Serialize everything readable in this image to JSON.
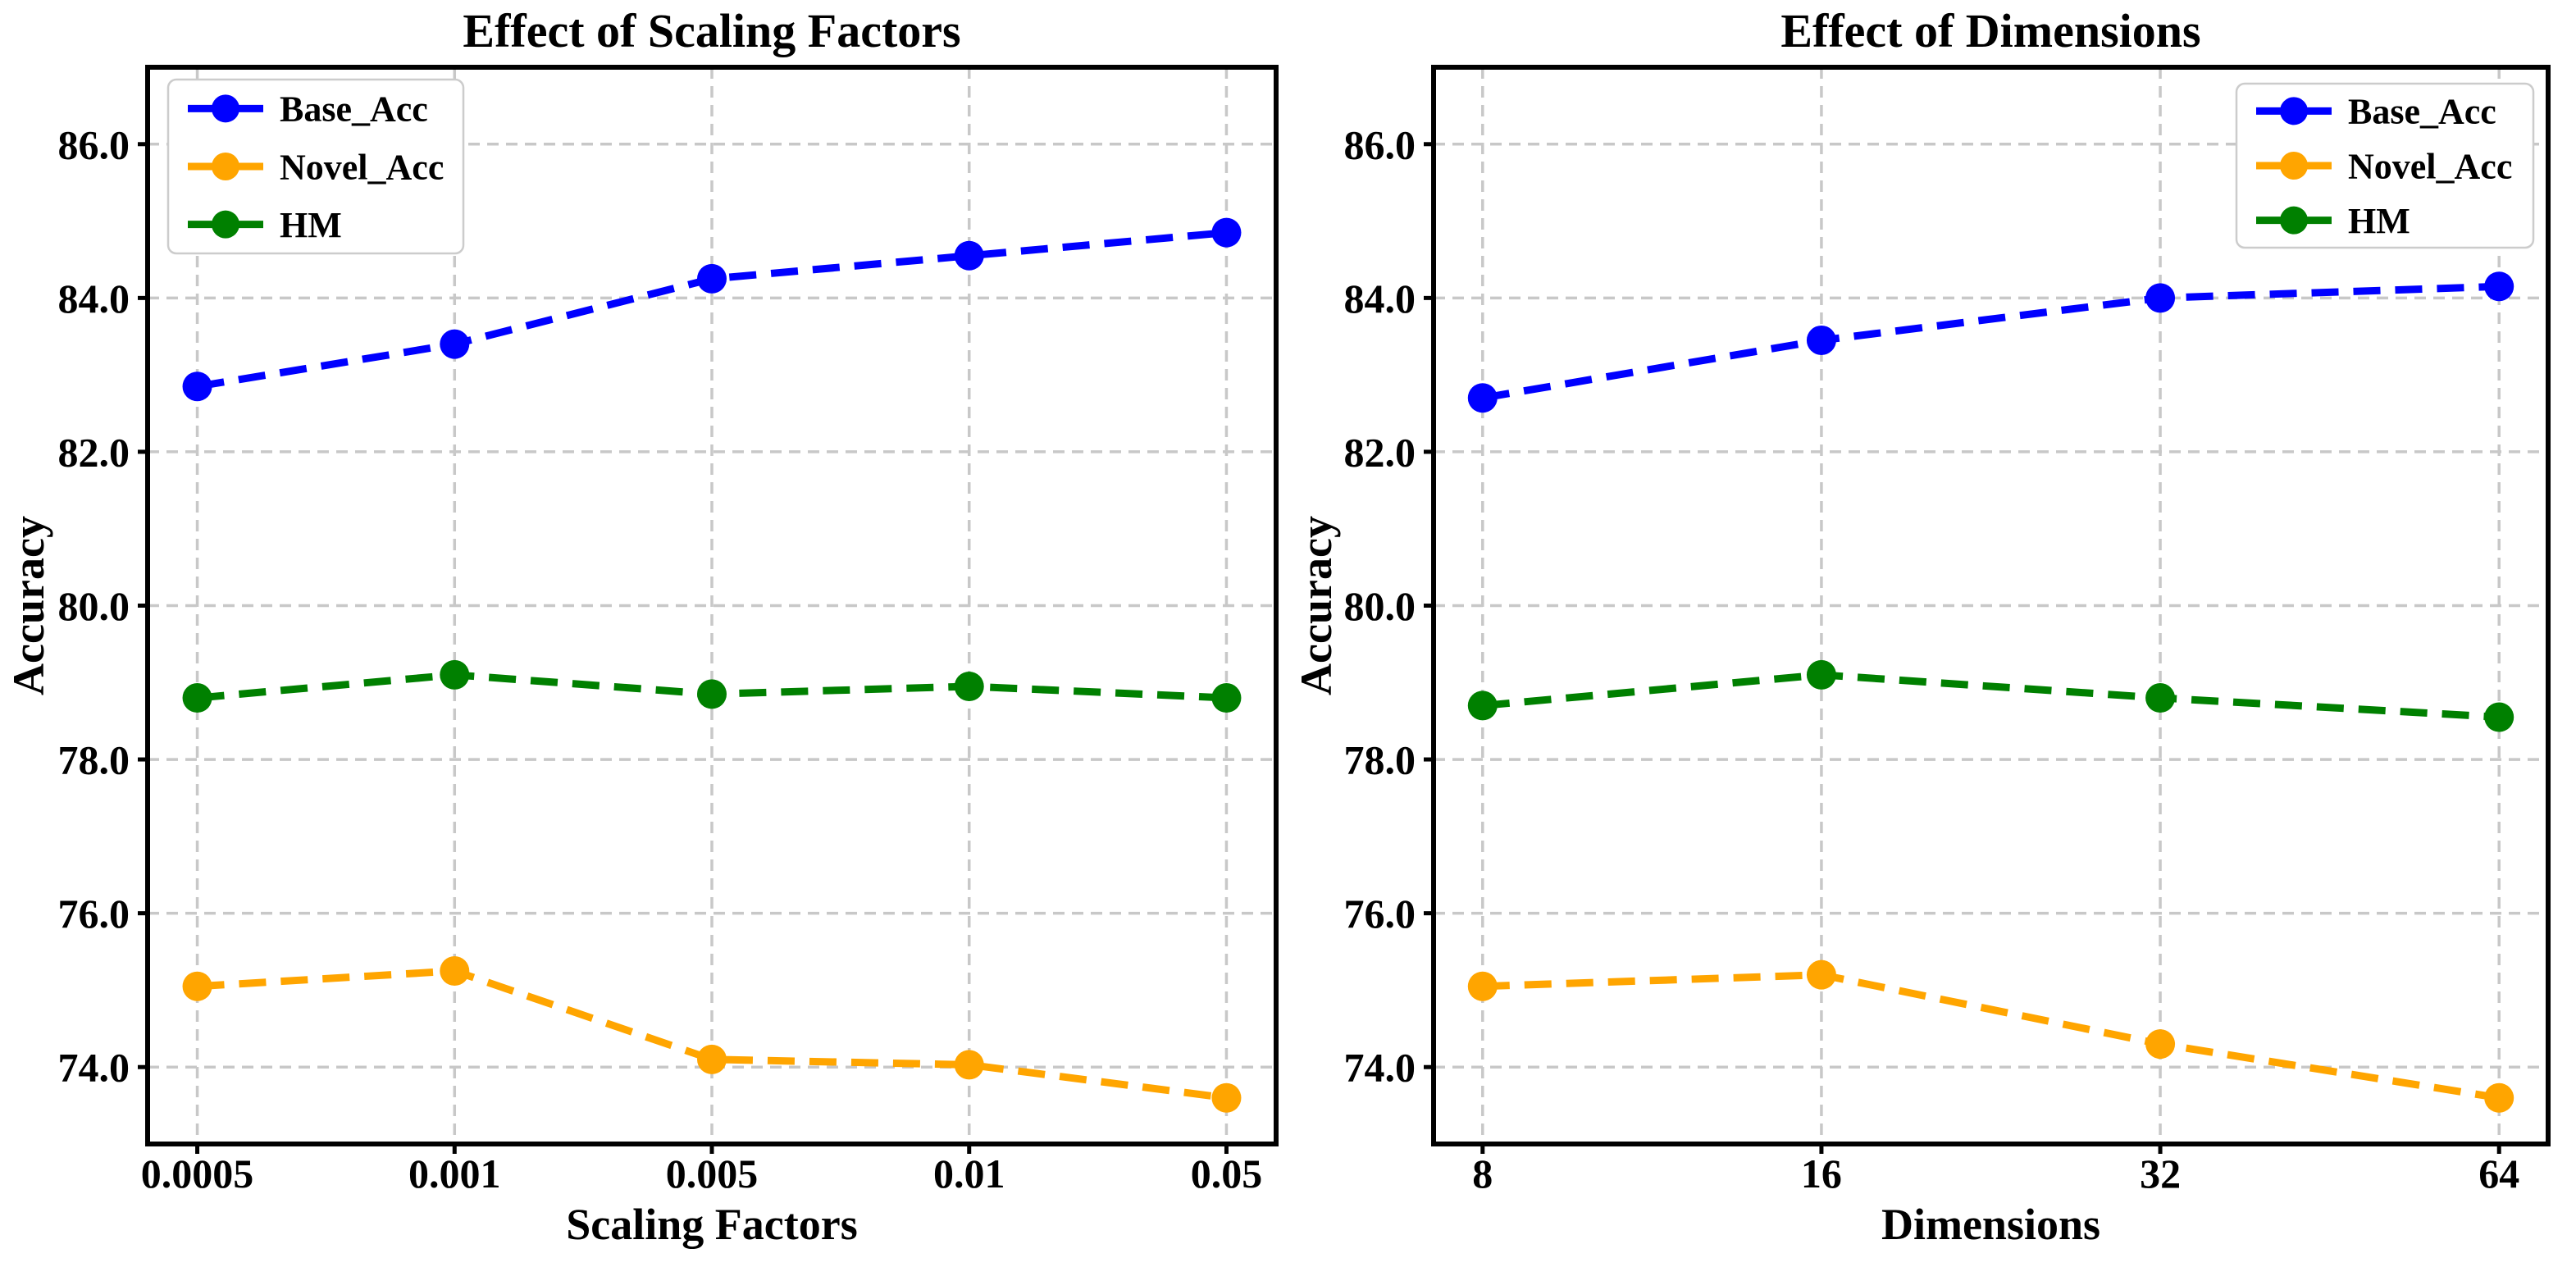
{
  "figure": {
    "background": "#ffffff",
    "text_color": "#000000",
    "grid_color": "#c8c8c8",
    "axis_color": "#000000",
    "legend_border_color": "#cccccc"
  },
  "chart_data": [
    {
      "type": "line",
      "title": "Effect of Scaling Factors",
      "xlabel": "Scaling Factors",
      "ylabel": "Accuracy",
      "categories": [
        "0.0005",
        "0.001",
        "0.005",
        "0.01",
        "0.05"
      ],
      "series": [
        {
          "name": "Base_Acc",
          "color": "#0000ff",
          "values": [
            82.85,
            83.4,
            84.25,
            84.55,
            84.85
          ]
        },
        {
          "name": "Novel_Acc",
          "color": "#ffa500",
          "values": [
            75.05,
            75.25,
            74.1,
            74.03,
            73.6
          ]
        },
        {
          "name": "HM",
          "color": "#008000",
          "values": [
            78.8,
            79.1,
            78.85,
            78.95,
            78.8
          ]
        }
      ],
      "ylim": [
        73.0,
        87.0
      ],
      "yticks": [
        74,
        76,
        78,
        80,
        82,
        84,
        86
      ],
      "ytick_labels": [
        "74.0",
        "76.0",
        "78.0",
        "80.0",
        "82.0",
        "84.0",
        "86.0"
      ],
      "grid": true,
      "line_style": "dashed",
      "marker": "circle",
      "legend_position": "upper-left"
    },
    {
      "type": "line",
      "title": "Effect of Dimensions",
      "xlabel": "Dimensions",
      "ylabel": "Accuracy",
      "categories": [
        "8",
        "16",
        "32",
        "64"
      ],
      "series": [
        {
          "name": "Base_Acc",
          "color": "#0000ff",
          "values": [
            82.7,
            83.45,
            84.0,
            84.15
          ]
        },
        {
          "name": "Novel_Acc",
          "color": "#ffa500",
          "values": [
            75.05,
            75.2,
            74.3,
            73.6
          ]
        },
        {
          "name": "HM",
          "color": "#008000",
          "values": [
            78.7,
            79.1,
            78.8,
            78.55
          ]
        }
      ],
      "ylim": [
        73.0,
        87.0
      ],
      "yticks": [
        74,
        76,
        78,
        80,
        82,
        84,
        86
      ],
      "ytick_labels": [
        "74.0",
        "76.0",
        "78.0",
        "80.0",
        "82.0",
        "84.0",
        "86.0"
      ],
      "grid": true,
      "line_style": "dashed",
      "marker": "circle",
      "legend_position": "upper-right"
    }
  ]
}
